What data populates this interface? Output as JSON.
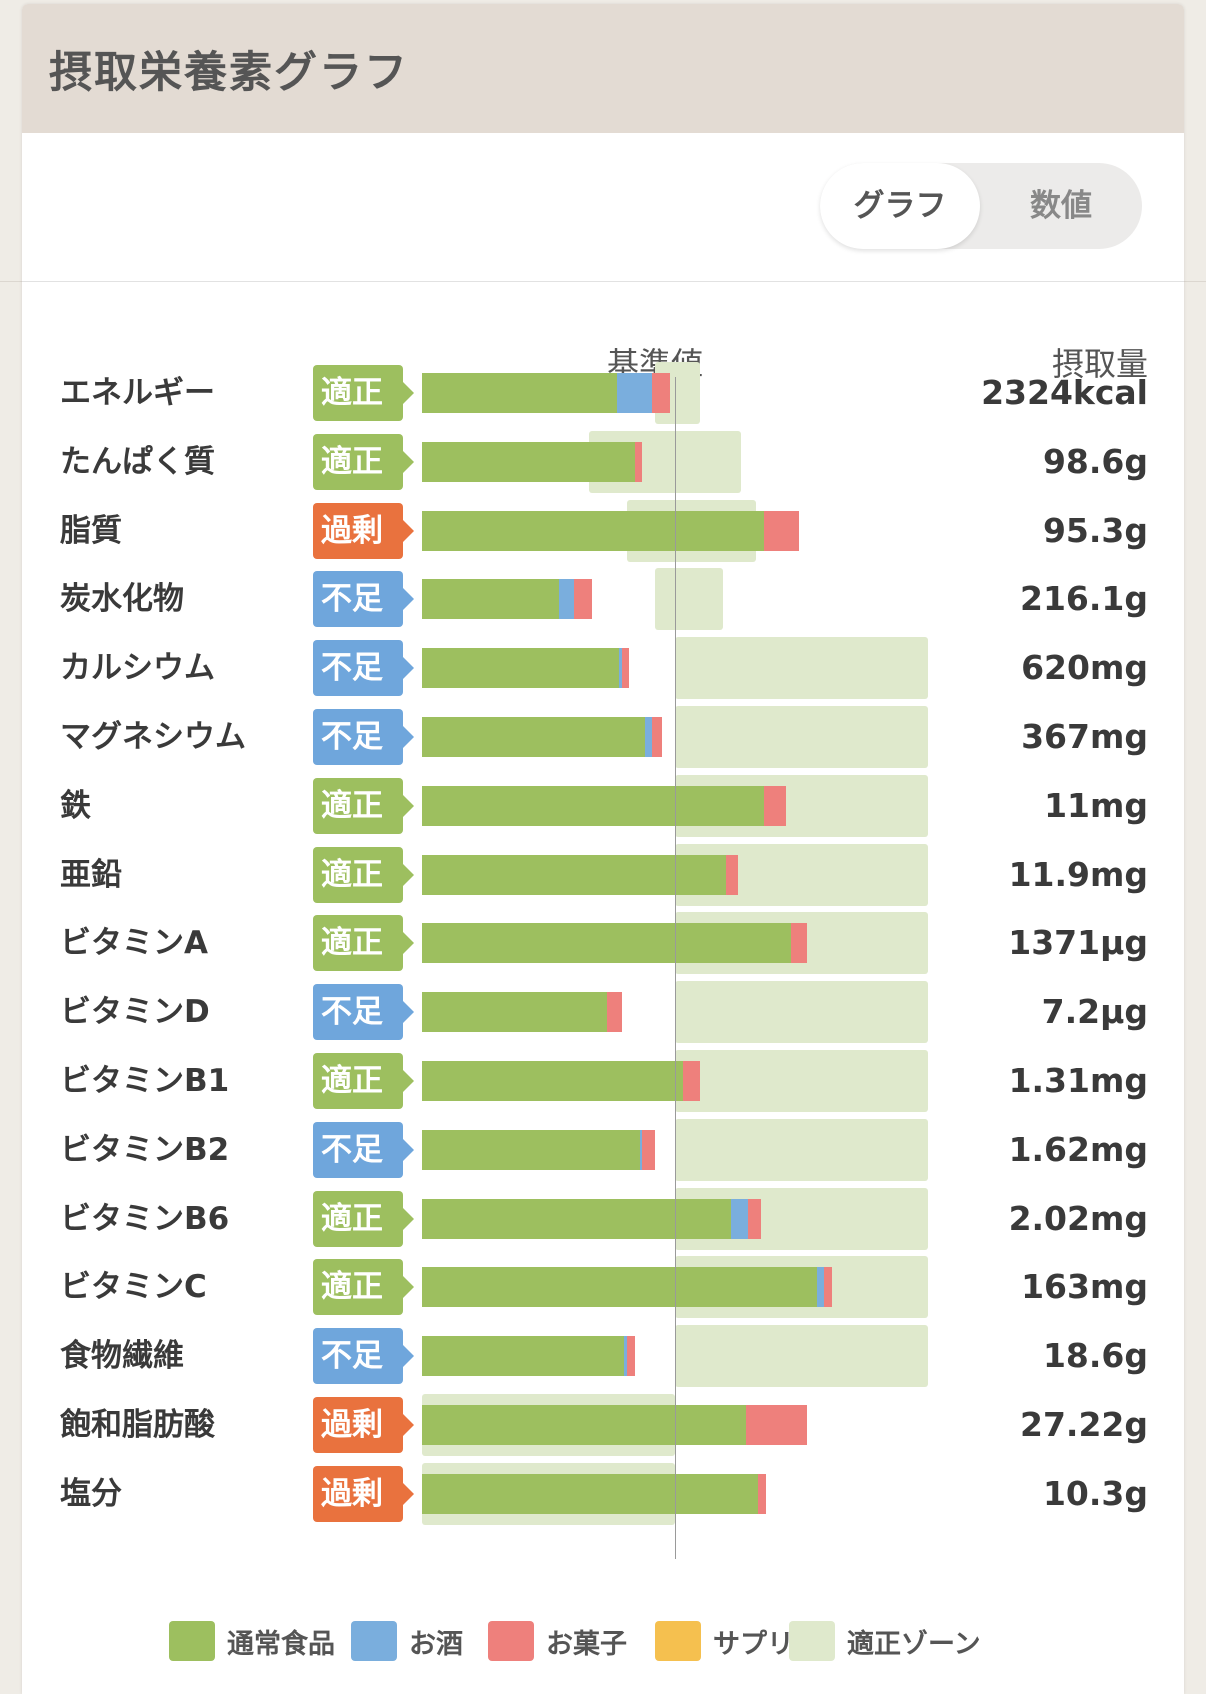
{
  "header": {
    "title": "摂取栄養素グラフ"
  },
  "toggle": {
    "graph_label": "グラフ",
    "value_label": "数値",
    "selected": "グラフ"
  },
  "columns": {
    "reference_label": "基準値",
    "intake_label": "摂取量"
  },
  "colors": {
    "food": "#9dbf5f",
    "alcohol": "#7aaedd",
    "sweets": "#ee807c",
    "supplement": "#f5c04f",
    "zone": "#dfe9cc",
    "badge_ok": "#9dbf5f",
    "badge_over": "#e9723e",
    "badge_low": "#6fa6dc"
  },
  "status_colors": {
    "適正": "#9dbf5f",
    "過剰": "#e9723e",
    "不足": "#6fa6dc"
  },
  "chart_data": {
    "type": "bar",
    "orientation": "horizontal",
    "stacked": true,
    "unit": "percent of reference value (基準値 = 100)",
    "reference_value": 100,
    "series_names": [
      "通常食品",
      "お酒",
      "お菓子",
      "サプリ"
    ],
    "rows": [
      {
        "name": "エネルギー",
        "status": "適正",
        "value": "2324kcal",
        "food": 77,
        "alcohol": 14,
        "sweets": 7,
        "supplement": 0,
        "zone": [
          92,
          110
        ]
      },
      {
        "name": "たんぱく質",
        "status": "適正",
        "value": "98.6g",
        "food": 84,
        "alcohol": 0,
        "sweets": 3,
        "supplement": 0,
        "zone": [
          66,
          126
        ]
      },
      {
        "name": "脂質",
        "status": "過剰",
        "value": "95.3g",
        "food": 135,
        "alcohol": 0,
        "sweets": 14,
        "supplement": 0,
        "zone": [
          81,
          132
        ]
      },
      {
        "name": "炭水化物",
        "status": "不足",
        "value": "216.1g",
        "food": 54,
        "alcohol": 6,
        "sweets": 7,
        "supplement": 0,
        "zone": [
          92,
          119
        ]
      },
      {
        "name": "カルシウム",
        "status": "不足",
        "value": "620mg",
        "food": 78,
        "alcohol": 1,
        "sweets": 3,
        "supplement": 0,
        "zone": [
          100,
          200
        ]
      },
      {
        "name": "マグネシウム",
        "status": "不足",
        "value": "367mg",
        "food": 88,
        "alcohol": 3,
        "sweets": 4,
        "supplement": 0,
        "zone": [
          100,
          200
        ]
      },
      {
        "name": "鉄",
        "status": "適正",
        "value": "11mg",
        "food": 135,
        "alcohol": 0,
        "sweets": 9,
        "supplement": 0,
        "zone": [
          100,
          200
        ]
      },
      {
        "name": "亜鉛",
        "status": "適正",
        "value": "11.9mg",
        "food": 120,
        "alcohol": 0,
        "sweets": 5,
        "supplement": 0,
        "zone": [
          100,
          200
        ]
      },
      {
        "name": "ビタミンA",
        "status": "適正",
        "value": "1371µg",
        "food": 146,
        "alcohol": 0,
        "sweets": 6,
        "supplement": 0,
        "zone": [
          100,
          200
        ]
      },
      {
        "name": "ビタミンD",
        "status": "不足",
        "value": "7.2µg",
        "food": 73,
        "alcohol": 0,
        "sweets": 6,
        "supplement": 0,
        "zone": [
          100,
          200
        ]
      },
      {
        "name": "ビタミンB1",
        "status": "適正",
        "value": "1.31mg",
        "food": 103,
        "alcohol": 0,
        "sweets": 7,
        "supplement": 0,
        "zone": [
          100,
          200
        ]
      },
      {
        "name": "ビタミンB2",
        "status": "不足",
        "value": "1.62mg",
        "food": 86,
        "alcohol": 1,
        "sweets": 5,
        "supplement": 0,
        "zone": [
          100,
          200
        ]
      },
      {
        "name": "ビタミンB6",
        "status": "適正",
        "value": "2.02mg",
        "food": 122,
        "alcohol": 7,
        "sweets": 5,
        "supplement": 0,
        "zone": [
          100,
          200
        ]
      },
      {
        "name": "ビタミンC",
        "status": "適正",
        "value": "163mg",
        "food": 156,
        "alcohol": 3,
        "sweets": 3,
        "supplement": 0,
        "zone": [
          100,
          200
        ]
      },
      {
        "name": "食物繊維",
        "status": "不足",
        "value": "18.6g",
        "food": 80,
        "alcohol": 1,
        "sweets": 3,
        "supplement": 0,
        "zone": [
          100,
          200
        ]
      },
      {
        "name": "飽和脂肪酸",
        "status": "過剰",
        "value": "27.22g",
        "food": 128,
        "alcohol": 0,
        "sweets": 24,
        "supplement": 0,
        "zone": [
          0,
          100
        ]
      },
      {
        "name": "塩分",
        "status": "過剰",
        "value": "10.3g",
        "food": 133,
        "alcohol": 0,
        "sweets": 3,
        "supplement": 0,
        "zone": [
          0,
          100
        ]
      }
    ]
  },
  "legend": [
    {
      "label": "通常食品",
      "color": "#9dbf5f"
    },
    {
      "label": "お酒",
      "color": "#7aaedd"
    },
    {
      "label": "お菓子",
      "color": "#ee807c"
    },
    {
      "label": "サプリ",
      "color": "#f5c04f"
    },
    {
      "label": "適正ゾーン",
      "color": "#dfe9cc"
    }
  ]
}
